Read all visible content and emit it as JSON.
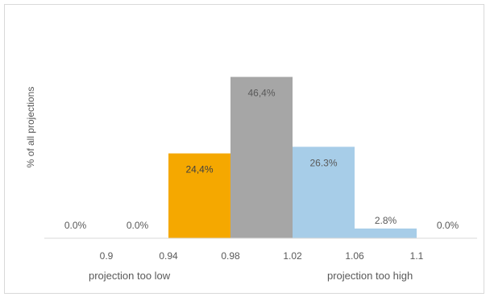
{
  "chart_data": {
    "type": "bar",
    "title": "",
    "ylabel": "% of all projections",
    "x_ticks": [
      "0.9",
      "0.94",
      "0.98",
      "1.02",
      "1.06",
      "1.1"
    ],
    "x_captions": [
      "projection too low",
      "projection too high"
    ],
    "bins": [
      {
        "label": "0.0%",
        "value": 0.0,
        "color": "#f5a800"
      },
      {
        "label": "0.0%",
        "value": 0.0,
        "color": "#f5a800"
      },
      {
        "label": "24,4%",
        "value": 24.4,
        "color": "#f5a800"
      },
      {
        "label": "46,4%",
        "value": 46.4,
        "color": "#a6a6a6"
      },
      {
        "label": "26.3%",
        "value": 26.3,
        "color": "#a7cde8"
      },
      {
        "label": "2.8%",
        "value": 2.8,
        "color": "#a7cde8"
      },
      {
        "label": "0.0%",
        "value": 0.0,
        "color": "#a7cde8"
      }
    ],
    "ylim": [
      0,
      50
    ],
    "grid": false,
    "legend": "none"
  }
}
